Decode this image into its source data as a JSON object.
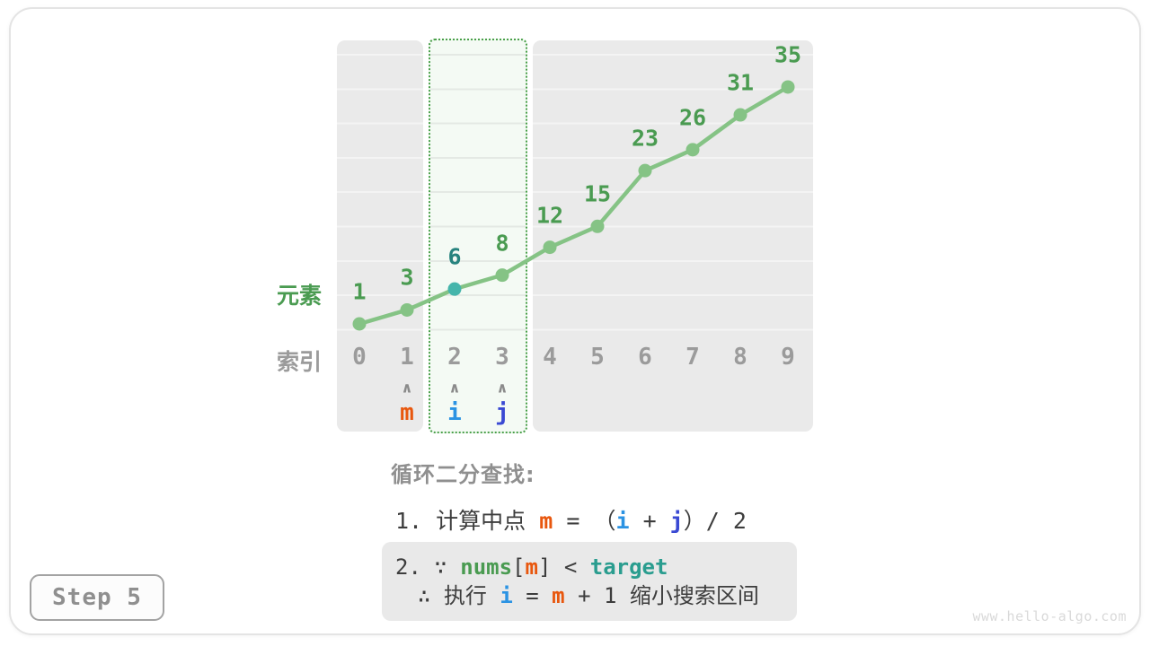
{
  "page": {
    "step_label": "Step 5",
    "watermark": "www.hello-algo.com"
  },
  "colors": {
    "plain": "#3d3d3d",
    "m": "#e8570e",
    "i": "#2b93e3",
    "j": "#3a49d3",
    "nums": "#4a9b51",
    "target": "#2a9d8f"
  },
  "chart": {
    "type": "line",
    "axis_labels": {
      "value": "元素",
      "index": "索引"
    },
    "indices": [
      0,
      1,
      2,
      3,
      4,
      5,
      6,
      7,
      8,
      9
    ],
    "values": [
      1,
      3,
      6,
      8,
      12,
      15,
      23,
      26,
      31,
      35
    ],
    "highlighted_point_index": 2,
    "highlight_range": [
      2,
      3
    ],
    "pointers": [
      {
        "label": "m",
        "index": 1,
        "color": "#e8570e"
      },
      {
        "label": "i",
        "index": 2,
        "color": "#2b93e3"
      },
      {
        "label": "j",
        "index": 3,
        "color": "#3a49d3"
      }
    ],
    "arrow_glyph": "∧",
    "colors": {
      "line": "#85c385",
      "point": "#85c385",
      "highlight_point": "#45b5ab",
      "value_label": "#4a9b51",
      "highlight_value_label": "#27837e",
      "index_label": "#9b9b9b",
      "arrow": "#8a8a8a",
      "highlight_border": "#4aa04a"
    }
  },
  "caption": {
    "heading": "循环二分查找:",
    "line1": [
      {
        "t": "1. 计算中点 ",
        "s": "plain"
      },
      {
        "t": "m",
        "s": "m"
      },
      {
        "t": " = ",
        "s": "plain"
      },
      {
        "t": "（",
        "s": "plain"
      },
      {
        "t": "i",
        "s": "i"
      },
      {
        "t": " + ",
        "s": "plain"
      },
      {
        "t": "j",
        "s": "j"
      },
      {
        "t": "）/ 2",
        "s": "plain"
      }
    ],
    "note_line1": [
      {
        "t": "2. ∵ ",
        "s": "plain"
      },
      {
        "t": "nums",
        "s": "nums"
      },
      {
        "t": "[",
        "s": "plain"
      },
      {
        "t": "m",
        "s": "m"
      },
      {
        "t": "] < ",
        "s": "plain"
      },
      {
        "t": "target",
        "s": "target"
      }
    ],
    "note_line2": [
      {
        "t": "∴ 执行 ",
        "s": "plain"
      },
      {
        "t": "i",
        "s": "i"
      },
      {
        "t": " = ",
        "s": "plain"
      },
      {
        "t": "m",
        "s": "m"
      },
      {
        "t": " + 1 缩小搜索区间",
        "s": "plain"
      }
    ]
  }
}
